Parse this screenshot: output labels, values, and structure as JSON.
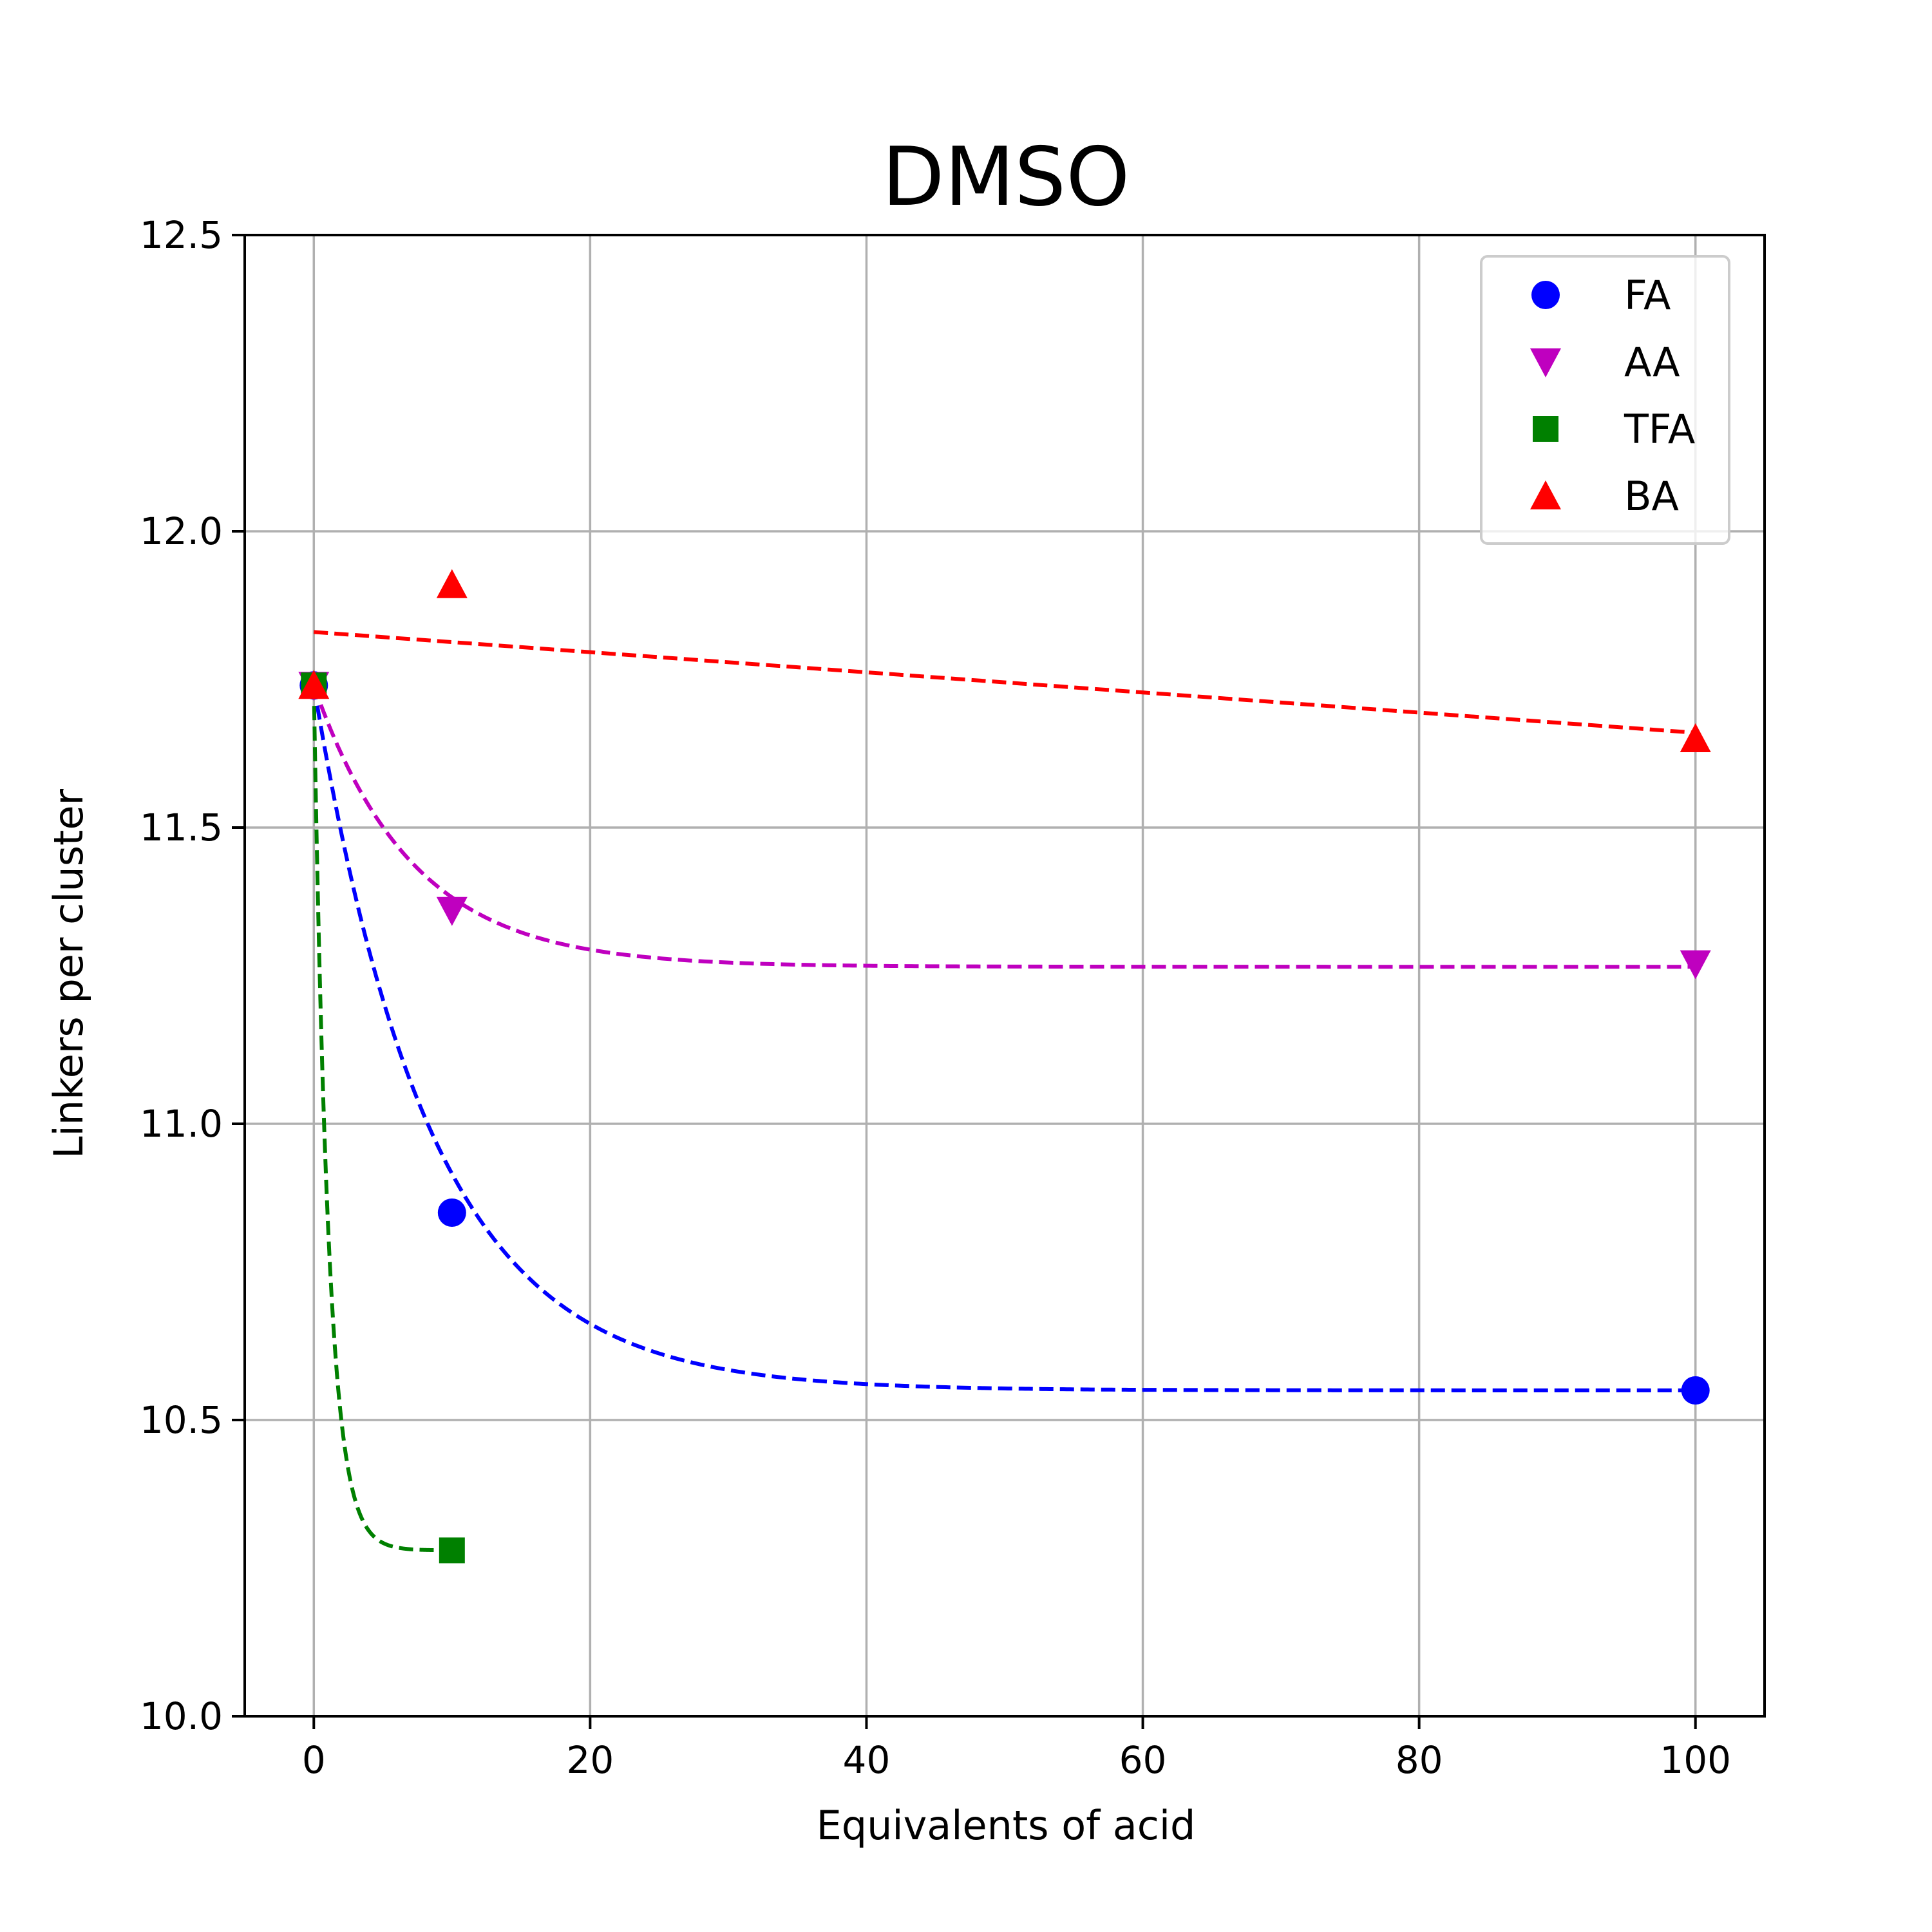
{
  "chart_data": {
    "type": "scatter",
    "title": "DMSO",
    "xlabel": "Equivalents of acid",
    "ylabel": "Linkers per cluster",
    "xlim": [
      -5,
      105
    ],
    "ylim": [
      10.0,
      12.5
    ],
    "xticks": [
      0,
      20,
      40,
      60,
      80,
      100
    ],
    "xtick_labels": [
      "0",
      "20",
      "40",
      "60",
      "80",
      "100"
    ],
    "yticks": [
      10.0,
      10.5,
      11.0,
      11.5,
      12.0,
      12.5
    ],
    "ytick_labels": [
      "10.0",
      "10.5",
      "11.0",
      "11.5",
      "12.0",
      "12.5"
    ],
    "grid": true,
    "legend_position": "upper right",
    "series": [
      {
        "name": "FA",
        "color": "#0000ff",
        "marker": "circle",
        "x": [
          0,
          10,
          100
        ],
        "y": [
          11.74,
          10.85,
          10.55
        ],
        "fit": {
          "kind": "exponential",
          "start": 11.74,
          "plateau": 10.55,
          "rate": 0.118,
          "x_end": 100
        }
      },
      {
        "name": "AA",
        "color": "#bf00bf",
        "marker": "triangle-down",
        "x": [
          0,
          10,
          100
        ],
        "y": [
          11.74,
          11.36,
          11.27
        ],
        "fit": {
          "kind": "exponential",
          "start": 11.74,
          "plateau": 11.265,
          "rate": 0.14,
          "x_end": 100
        }
      },
      {
        "name": "TFA",
        "color": "#008000",
        "marker": "square",
        "x": [
          0,
          10
        ],
        "y": [
          11.74,
          10.28
        ],
        "fit": {
          "kind": "exponential",
          "start": 11.74,
          "plateau": 10.28,
          "rate": 0.95,
          "x_end": 10
        }
      },
      {
        "name": "BA",
        "color": "#ff0000",
        "marker": "triangle-up",
        "x": [
          0,
          10,
          100
        ],
        "y": [
          11.74,
          11.91,
          11.65
        ],
        "fit": {
          "kind": "linear",
          "x": [
            0,
            100
          ],
          "y": [
            11.83,
            11.66
          ]
        }
      }
    ]
  }
}
